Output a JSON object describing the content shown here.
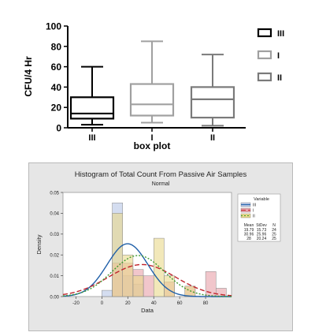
{
  "chart_data": [
    {
      "type": "box",
      "xlabel": "box plot",
      "ylabel": "CFU/4 Hr",
      "ylim": [
        0,
        100
      ],
      "yticks": [
        0,
        20,
        40,
        60,
        80,
        100
      ],
      "categories": [
        "III",
        "I",
        "II"
      ],
      "series": [
        {
          "name": "III",
          "min": 3,
          "q1": 9,
          "median": 14,
          "q3": 30,
          "max": 60,
          "color": "#000000"
        },
        {
          "name": "I",
          "min": 5,
          "q1": 12,
          "median": 23,
          "q3": 43,
          "max": 85,
          "color": "#a0a0a0"
        },
        {
          "name": "II",
          "min": 2,
          "q1": 10,
          "median": 28,
          "q3": 40,
          "max": 72,
          "color": "#7a7a7a"
        }
      ],
      "legend": [
        "III",
        "I",
        "II"
      ],
      "legend_position": "top-right"
    },
    {
      "type": "histogram",
      "title": "Histogram of Total Count From Passive Air Samples",
      "subtitle": "Normal",
      "xlabel": "Data",
      "ylabel": "Density",
      "xlim": [
        -30,
        100
      ],
      "ylim": [
        0,
        0.05
      ],
      "xticks": [
        -20,
        0,
        20,
        40,
        60,
        80
      ],
      "yticks": [
        0.0,
        0.01,
        0.02,
        0.03,
        0.04,
        0.05
      ],
      "ytick_labels": [
        "0.00",
        "0.01",
        "0.02",
        "0.03",
        "0.04",
        "0.05"
      ],
      "bin_width": 8,
      "bins": [
        {
          "x0": 0,
          "x1": 8,
          "III": 0.003,
          "I": 0.0,
          "II": 0.0
        },
        {
          "x0": 8,
          "x1": 16,
          "III": 0.045,
          "I": 0.016,
          "II": 0.04
        },
        {
          "x0": 16,
          "x1": 24,
          "III": 0.01,
          "I": 0.016,
          "II": 0.02
        },
        {
          "x0": 24,
          "x1": 32,
          "III": 0.006,
          "I": 0.013,
          "II": 0.01
        },
        {
          "x0": 32,
          "x1": 40,
          "III": 0.0,
          "I": 0.01,
          "II": 0.0
        },
        {
          "x0": 40,
          "x1": 48,
          "III": 0.0,
          "I": 0.0,
          "II": 0.028
        },
        {
          "x0": 48,
          "x1": 56,
          "III": 0.0,
          "I": 0.007,
          "II": 0.01
        },
        {
          "x0": 56,
          "x1": 64,
          "III": 0.0,
          "I": 0.0,
          "II": 0.0
        },
        {
          "x0": 64,
          "x1": 72,
          "III": 0.0,
          "I": 0.005,
          "II": 0.005
        },
        {
          "x0": 72,
          "x1": 80,
          "III": 0.0,
          "I": 0.0,
          "II": 0.0
        },
        {
          "x0": 80,
          "x1": 88,
          "III": 0.0,
          "I": 0.012,
          "II": 0.0
        },
        {
          "x0": 88,
          "x1": 96,
          "III": 0.0,
          "I": 0.004,
          "II": 0.0
        }
      ],
      "series": [
        {
          "name": "III",
          "mean": 19.79,
          "stdev": 15.73,
          "n": 24,
          "fill": "#b7c7e6",
          "line": "#1f5fa8",
          "dash": ""
        },
        {
          "name": "I",
          "mean": 30.96,
          "stdev": 25.96,
          "n": 25,
          "fill": "#e8a0a8",
          "line": "#c0262e",
          "dash": "6,3"
        },
        {
          "name": "II",
          "mean": 28,
          "stdev": 20.24,
          "n": 25,
          "fill": "#e9d98a",
          "line": "#3f9a2f",
          "dash": "2,2"
        }
      ],
      "legend_title": "Variable",
      "legend_table_headers": [
        "Mean",
        "StDev",
        "N"
      ],
      "legend_table_rows": [
        [
          "19.79",
          "15.73",
          "24"
        ],
        [
          "30.96",
          "25.96",
          "25"
        ],
        [
          "28",
          "20.24",
          "25"
        ]
      ],
      "legend_position": "right"
    }
  ]
}
